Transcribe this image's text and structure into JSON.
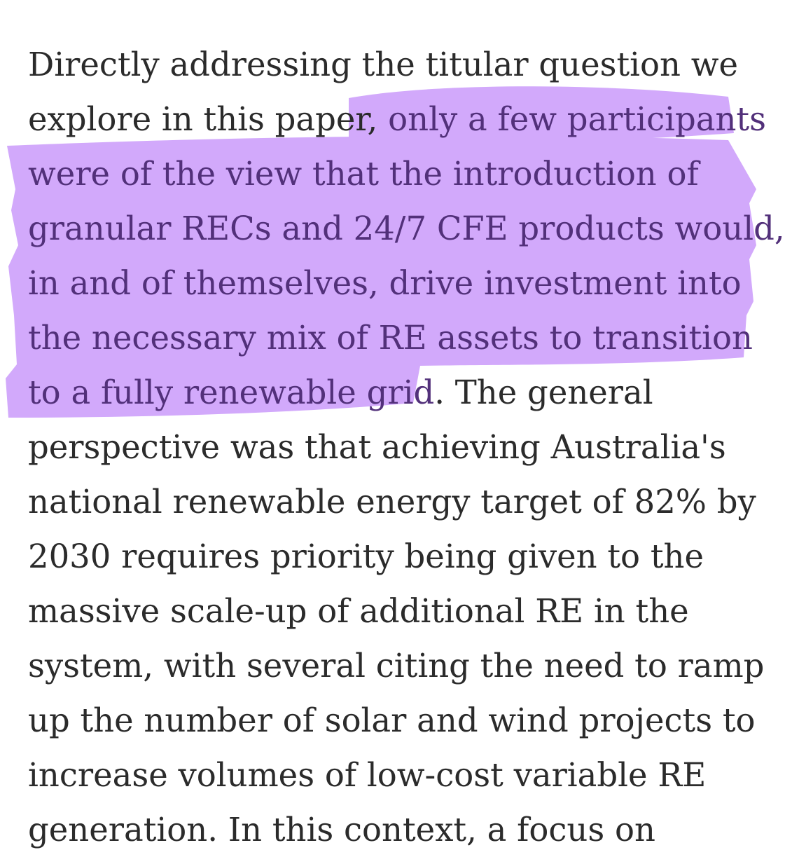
{
  "paragraph": {
    "lines": [
      {
        "before": "Directly addressing the titular question we",
        "highlighted": "",
        "after": ""
      },
      {
        "before": "explore in this paper,",
        "highlighted": " only a few participants",
        "after": ""
      },
      {
        "before": "",
        "highlighted": "were of the view that the introduction of",
        "after": ""
      },
      {
        "before": "",
        "highlighted": "granular RECs and 24/7 CFE products would,",
        "after": ""
      },
      {
        "before": "",
        "highlighted": "in and of themselves, drive investment into",
        "after": ""
      },
      {
        "before": "",
        "highlighted": "the necessary mix of RE assets to transition",
        "after": ""
      },
      {
        "before": "",
        "highlighted": "to a fully renewable grid",
        "after": ". The general"
      },
      {
        "before": "perspective was that achieving Australia's",
        "highlighted": "",
        "after": ""
      },
      {
        "before": "national renewable energy target of 82% by",
        "highlighted": "",
        "after": ""
      },
      {
        "before": "2030 requires priority being given to the",
        "highlighted": "",
        "after": ""
      },
      {
        "before": "massive scale-up of additional RE in the",
        "highlighted": "",
        "after": ""
      },
      {
        "before": "system, with several citing the need to ramp",
        "highlighted": "",
        "after": ""
      },
      {
        "before": "up the number of solar and wind projects to",
        "highlighted": "",
        "after": ""
      },
      {
        "before": "increase volumes of low-cost variable RE",
        "highlighted": "",
        "after": ""
      },
      {
        "before": "generation. In this context, a focus on",
        "highlighted": "",
        "after": ""
      }
    ]
  },
  "colors": {
    "text": "#2b2b2b",
    "highlight_text": "#52307a",
    "highlight_marker": "#d2a9fb",
    "background": "#ffffff"
  }
}
